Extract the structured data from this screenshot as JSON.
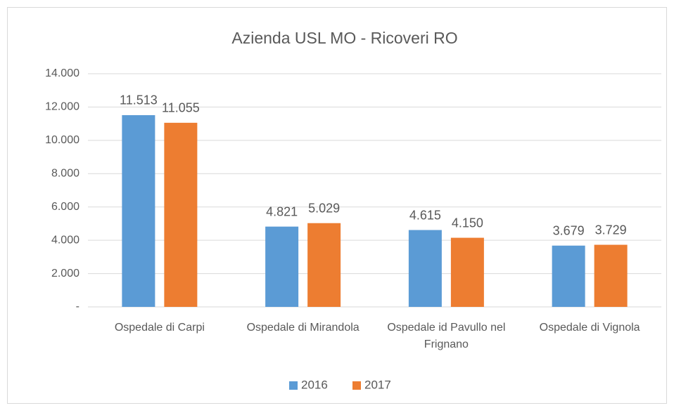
{
  "chart_data": {
    "type": "bar",
    "title": "Azienda USL MO - Ricoveri RO",
    "categories": [
      "Ospedale di Carpi",
      "Ospedale di Mirandola",
      "Ospedale id Pavullo nel Frignano",
      "Ospedale di Vignola"
    ],
    "series": [
      {
        "name": "2016",
        "color": "#5b9bd5",
        "values": [
          11513,
          4821,
          4615,
          3679
        ],
        "value_labels": [
          "11.513",
          "4.821",
          "4.615",
          "3.679"
        ]
      },
      {
        "name": "2017",
        "color": "#ed7d31",
        "values": [
          11055,
          5029,
          4150,
          3729
        ],
        "value_labels": [
          "11.055",
          "5.029",
          "4.150",
          "3.729"
        ]
      }
    ],
    "ylim": [
      0,
      14000
    ],
    "yticks": [
      {
        "value": 0,
        "label": "-"
      },
      {
        "value": 2000,
        "label": "2.000"
      },
      {
        "value": 4000,
        "label": "4.000"
      },
      {
        "value": 6000,
        "label": "6.000"
      },
      {
        "value": 8000,
        "label": "8.000"
      },
      {
        "value": 10000,
        "label": "10.000"
      },
      {
        "value": 12000,
        "label": "12.000"
      },
      {
        "value": 14000,
        "label": "14.000"
      }
    ],
    "grid": true,
    "legend": "bottom"
  }
}
